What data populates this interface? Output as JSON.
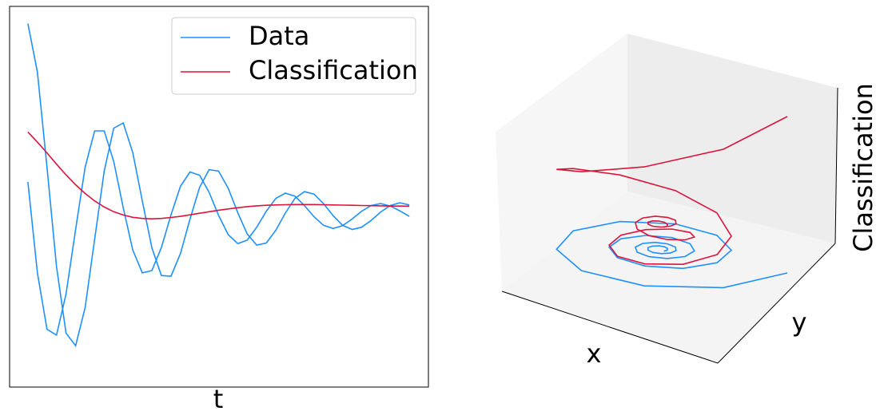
{
  "chart_data": [
    {
      "type": "line",
      "xlabel": "t",
      "legend": "upper right",
      "x": [
        0,
        0.5,
        1,
        1.5,
        2,
        2.5,
        3,
        3.5,
        4,
        4.5,
        5,
        5.5,
        6,
        6.5,
        7,
        7.5,
        8,
        8.5,
        9,
        9.5,
        10,
        10.5,
        11,
        11.5,
        12,
        12.5,
        13,
        13.5,
        14,
        14.5,
        15,
        15.5,
        16,
        16.5,
        17,
        17.5,
        18,
        18.5,
        19,
        19.5,
        20
      ],
      "xlim": [
        -0.96,
        21
      ],
      "ylim": [
        -0.91,
        1.09
      ],
      "series": [
        {
          "name": "Data",
          "color": "#1e90ff",
          "values": [
            1.0,
            0.745,
            0.245,
            -0.277,
            -0.626,
            -0.693,
            -0.493,
            -0.134,
            0.225,
            0.45,
            0.478,
            0.322,
            0.067,
            -0.178,
            -0.324,
            -0.328,
            -0.208,
            -0.028,
            0.139,
            0.232,
            0.225,
            0.135,
            0.007,
            -0.106,
            -0.164,
            -0.153,
            -0.086,
            0.004,
            0.081,
            0.117,
            0.104,
            0.054,
            -0.009,
            -0.06,
            -0.082,
            -0.07,
            -0.034,
            0.01,
            0.044,
            0.058,
            0.047
          ]
        },
        {
          "color": "#1e90ff",
          "values": [
            0.167,
            -0.31,
            -0.606,
            -0.637,
            -0.422,
            -0.082,
            0.245,
            0.436,
            0.436,
            0.275,
            0.032,
            -0.19,
            -0.31,
            -0.298,
            -0.177,
            -0.006,
            0.145,
            0.22,
            0.203,
            0.113,
            -0.008,
            -0.109,
            -0.156,
            -0.138,
            -0.07,
            0.014,
            0.081,
            0.109,
            0.093,
            0.044,
            -0.015,
            -0.06,
            -0.077,
            -0.062,
            -0.027,
            0.014,
            0.044,
            0.054,
            0.041,
            0.016,
            -0.013
          ]
        },
        {
          "name": "Classification",
          "color": "#dc143c",
          "values": [
            0.43,
            0.377,
            0.32,
            0.261,
            0.205,
            0.153,
            0.107,
            0.068,
            0.036,
            0.011,
            -0.006,
            -0.018,
            -0.024,
            -0.026,
            -0.024,
            -0.019,
            -0.013,
            -0.005,
            0.003,
            0.011,
            0.019,
            0.026,
            0.032,
            0.038,
            0.042,
            0.045,
            0.047,
            0.048,
            0.049,
            0.049,
            0.049,
            0.048,
            0.047,
            0.046,
            0.045,
            0.044,
            0.043,
            0.042,
            0.041,
            0.041,
            0.04
          ]
        }
      ]
    },
    {
      "type": "line3d",
      "xlabel": "x",
      "ylabel": "y",
      "zlabel": "Classification",
      "zlim": [
        -0.03,
        0.45
      ]
    }
  ]
}
